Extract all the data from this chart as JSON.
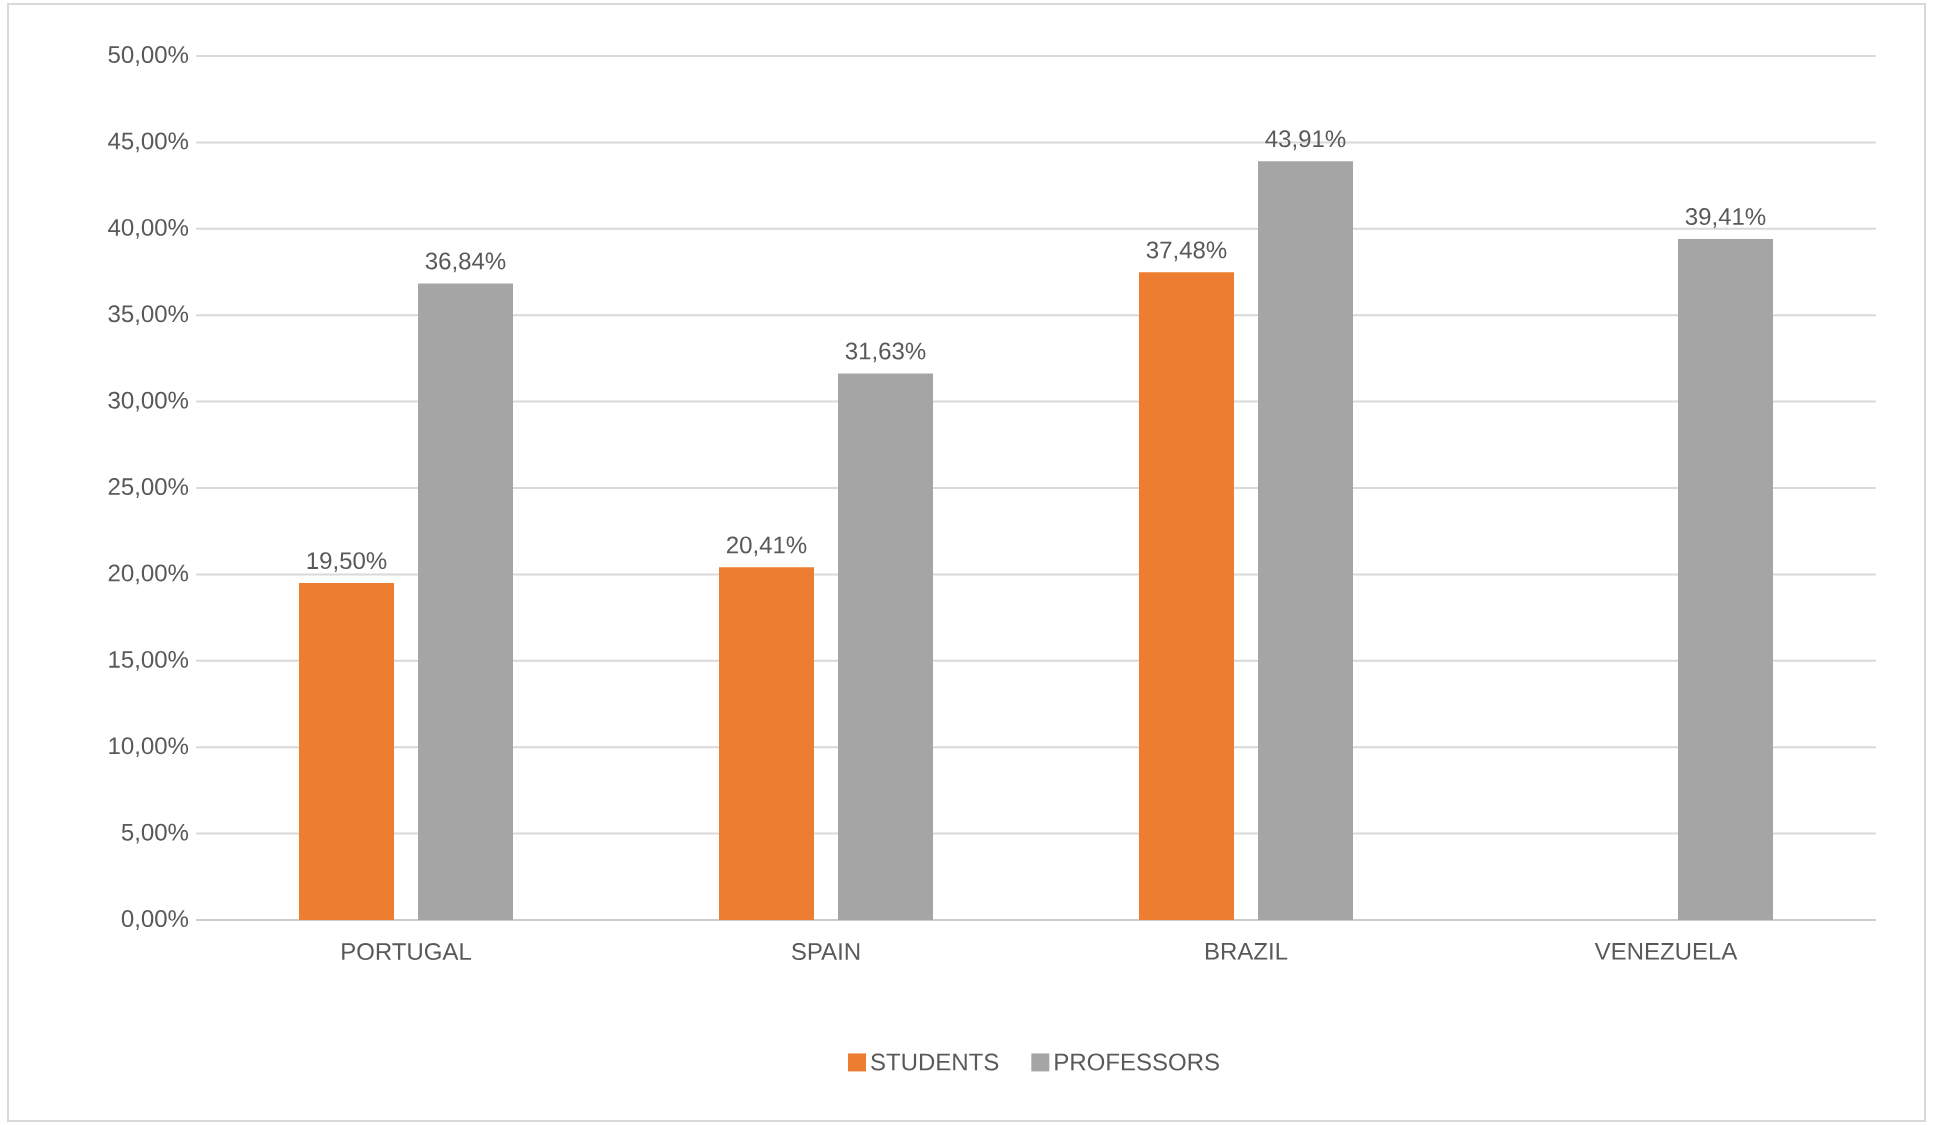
{
  "chart_data": {
    "type": "bar",
    "categories": [
      "PORTUGAL",
      "SPAIN",
      "BRAZIL",
      "VENEZUELA"
    ],
    "series": [
      {
        "name": "STUDENTS",
        "color": "#ed7d31",
        "values": [
          19.5,
          20.41,
          37.48,
          null
        ],
        "value_labels": [
          "19,50%",
          "20,41%",
          "37,48%",
          null
        ]
      },
      {
        "name": "PROFESSORS",
        "color": "#a5a5a5",
        "values": [
          36.84,
          31.63,
          43.91,
          39.41
        ],
        "value_labels": [
          "36,84%",
          "31,63%",
          "43,91%",
          "39,41%"
        ]
      }
    ],
    "ylim": [
      0,
      50
    ],
    "yticks": [
      {
        "value": 0,
        "label": "0,00%"
      },
      {
        "value": 5,
        "label": "5,00%"
      },
      {
        "value": 10,
        "label": "10,00%"
      },
      {
        "value": 15,
        "label": "15,00%"
      },
      {
        "value": 20,
        "label": "20,00%"
      },
      {
        "value": 25,
        "label": "25,00%"
      },
      {
        "value": 30,
        "label": "30,00%"
      },
      {
        "value": 35,
        "label": "35,00%"
      },
      {
        "value": 40,
        "label": "40,00%"
      },
      {
        "value": 45,
        "label": "45,00%"
      },
      {
        "value": 50,
        "label": "50,00%"
      }
    ],
    "grid": "y",
    "legend": "bottom"
  }
}
